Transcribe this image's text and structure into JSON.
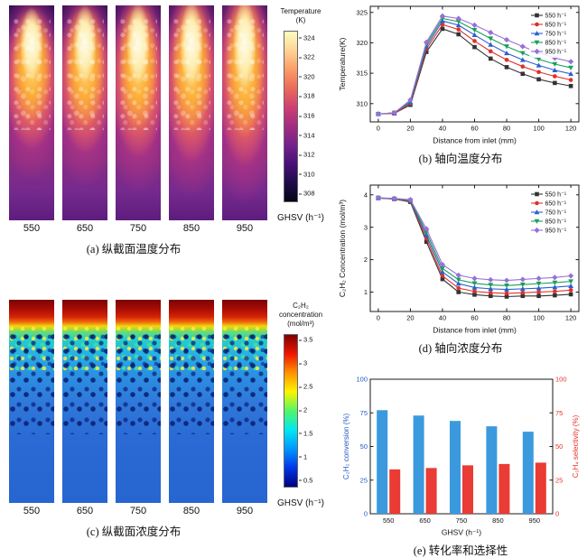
{
  "figure": {
    "panel_a": {
      "ghsv_labels": [
        "550",
        "650",
        "750",
        "850",
        "950"
      ],
      "ghsv_unit": "GHSV (h⁻¹)",
      "caption": "(a) 纵截面温度分布",
      "colorbar": {
        "title_line1": "Temperature",
        "title_line2": "(K)",
        "min": 307.3,
        "max": 324.7,
        "ticks": [
          324,
          322,
          320,
          318,
          316,
          314,
          312,
          310,
          308
        ],
        "colors": [
          "#fcfdbf",
          "#fed395",
          "#fb9d67",
          "#ec6a59",
          "#cf4070",
          "#a32c80",
          "#76228c",
          "#491078",
          "#1f0c48",
          "#070318"
        ]
      }
    },
    "panel_b": {
      "caption": "(b) 轴向温度分布"
    },
    "panel_c": {
      "ghsv_labels": [
        "550",
        "650",
        "750",
        "850",
        "950"
      ],
      "ghsv_unit": "GHSV (h⁻¹)",
      "caption": "(c) 纵截面浓度分布",
      "colorbar": {
        "title_line1": "C₂H₂ concentration",
        "title_line2": "(mol/m³)",
        "min": 0.38,
        "max": 3.62,
        "ticks": [
          3.5,
          3,
          2.5,
          2,
          1.5,
          1,
          0.5
        ],
        "colors": [
          "#7f0000",
          "#ef1500",
          "#ff9300",
          "#fdf400",
          "#52f667",
          "#00e8f0",
          "#0099ff",
          "#0037e8",
          "#00007f"
        ]
      }
    },
    "panel_d": {
      "caption": "(d) 轴向浓度分布"
    },
    "panel_e": {
      "caption": "(e) 转化率和选择性"
    }
  },
  "chart_data": [
    {
      "id": "chart-b",
      "type": "line",
      "xlabel": "Distance from inlet (mm)",
      "ylabel": "Temperature(K)",
      "x": [
        0,
        10,
        20,
        30,
        40,
        50,
        60,
        70,
        80,
        90,
        100,
        110,
        120
      ],
      "xlim": [
        -5,
        125
      ],
      "ylim": [
        307,
        326
      ],
      "x_ticks": [
        0,
        20,
        40,
        60,
        80,
        100,
        120
      ],
      "y_ticks": [
        310,
        315,
        320,
        325
      ],
      "legend_position": "top-right",
      "series": [
        {
          "name": "550 h⁻¹",
          "color": "#333333",
          "marker": "square",
          "values": [
            308.3,
            308.4,
            309.8,
            318.5,
            322.3,
            321.4,
            319.3,
            317.4,
            316.0,
            314.9,
            314.0,
            313.4,
            312.9
          ]
        },
        {
          "name": "650 h⁻¹",
          "color": "#e03127",
          "marker": "circle",
          "values": [
            308.3,
            308.4,
            310.0,
            319.0,
            323.0,
            322.2,
            320.3,
            318.6,
            317.2,
            316.1,
            315.2,
            314.5,
            313.9
          ]
        },
        {
          "name": "750 h⁻¹",
          "color": "#2a5fd0",
          "marker": "triangle-up",
          "values": [
            308.3,
            308.5,
            310.2,
            319.4,
            323.6,
            322.9,
            321.3,
            319.7,
            318.3,
            317.2,
            316.3,
            315.5,
            314.9
          ]
        },
        {
          "name": "850 h⁻¹",
          "color": "#19a05a",
          "marker": "triangle-down",
          "values": [
            308.3,
            308.5,
            310.4,
            319.8,
            324.0,
            323.5,
            322.1,
            320.7,
            319.4,
            318.3,
            317.3,
            316.5,
            315.9
          ]
        },
        {
          "name": "950 h⁻¹",
          "color": "#9a6fd8",
          "marker": "diamond",
          "values": [
            308.3,
            308.5,
            310.6,
            320.1,
            324.4,
            324.0,
            322.9,
            321.7,
            320.5,
            319.4,
            318.4,
            317.5,
            316.9
          ]
        }
      ]
    },
    {
      "id": "chart-d",
      "type": "line",
      "xlabel": "Distance from inlet (mm)",
      "ylabel": "C₂H₂ Concentration (mol/m³)",
      "x": [
        0,
        10,
        20,
        30,
        40,
        50,
        60,
        70,
        80,
        90,
        100,
        110,
        120
      ],
      "xlim": [
        -5,
        125
      ],
      "ylim": [
        0.4,
        4.3
      ],
      "x_ticks": [
        0,
        20,
        40,
        60,
        80,
        100,
        120
      ],
      "y_ticks": [
        1,
        2,
        3,
        4
      ],
      "legend_position": "top-right",
      "series": [
        {
          "name": "550 h⁻¹",
          "color": "#333333",
          "marker": "square",
          "values": [
            3.9,
            3.87,
            3.78,
            2.55,
            1.4,
            1.0,
            0.92,
            0.88,
            0.86,
            0.88,
            0.88,
            0.9,
            0.93
          ]
        },
        {
          "name": "650 h⁻¹",
          "color": "#e03127",
          "marker": "circle",
          "values": [
            3.9,
            3.87,
            3.8,
            2.65,
            1.5,
            1.12,
            1.02,
            0.98,
            0.96,
            0.98,
            1.0,
            1.02,
            1.06
          ]
        },
        {
          "name": "750 h⁻¹",
          "color": "#2a5fd0",
          "marker": "triangle-up",
          "values": [
            3.9,
            3.88,
            3.82,
            2.75,
            1.62,
            1.26,
            1.14,
            1.1,
            1.08,
            1.1,
            1.12,
            1.15,
            1.19
          ]
        },
        {
          "name": "850 h⁻¹",
          "color": "#19a05a",
          "marker": "triangle-down",
          "values": [
            3.91,
            3.88,
            3.83,
            2.85,
            1.73,
            1.38,
            1.27,
            1.22,
            1.2,
            1.23,
            1.26,
            1.29,
            1.33
          ]
        },
        {
          "name": "950 h⁻¹",
          "color": "#9a6fd8",
          "marker": "diamond",
          "values": [
            3.91,
            3.89,
            3.85,
            2.95,
            1.85,
            1.52,
            1.42,
            1.38,
            1.36,
            1.39,
            1.42,
            1.45,
            1.5
          ]
        }
      ]
    },
    {
      "id": "chart-e",
      "type": "bar-dual",
      "categories": [
        "550",
        "650",
        "750",
        "850",
        "950"
      ],
      "xlabel": "GHSV (h⁻¹)",
      "left_axis": {
        "label": "C₂H₂ conversion (%)",
        "color": "#2558c8",
        "ticks": [
          0,
          25,
          50,
          75,
          100
        ],
        "lim": [
          0,
          100
        ]
      },
      "right_axis": {
        "label": "C₂H₄ selectivity (%)",
        "color": "#e8302a",
        "ticks": [
          0,
          25,
          50,
          75,
          100
        ],
        "lim": [
          0,
          100
        ]
      },
      "series": [
        {
          "name": "C₂H₂ conversion",
          "axis": "left",
          "color": "#3b9ade",
          "values": [
            77,
            73,
            69,
            65,
            61
          ]
        },
        {
          "name": "C₂H₄ selectivity",
          "axis": "right",
          "color": "#ea3b34",
          "values": [
            33,
            34,
            36,
            37,
            38
          ]
        }
      ]
    }
  ]
}
